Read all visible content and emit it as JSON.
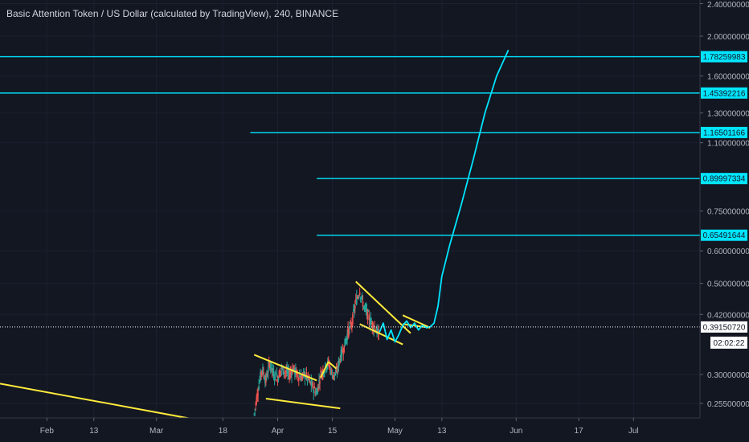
{
  "header": {
    "title": "Basic Attention Token / US Dollar (calculated by TradingView), 240, BINANCE"
  },
  "colors": {
    "background": "#131722",
    "level_line": "#00e5ff",
    "pattern": "#ffeb3b",
    "projection": "#00e5ff",
    "candle_up": "#26a69a",
    "candle_down": "#ef5350",
    "axis_text": "#b2b5be",
    "label_bg": "#ffffff"
  },
  "chart_data": {
    "type": "line",
    "title": "Basic Attention Token / US Dollar (calculated by TradingView), 240, BINANCE",
    "y_scale": "log",
    "ylim": [
      0.225,
      2.4
    ],
    "y_ticks": [
      {
        "value": 2.4,
        "label": "2.40000000"
      },
      {
        "value": 2.0,
        "label": "2.00000000"
      },
      {
        "value": 1.6,
        "label": "1.60000000"
      },
      {
        "value": 1.3,
        "label": "1.30000000"
      },
      {
        "value": 1.1,
        "label": "1.10000000"
      },
      {
        "value": 0.75,
        "label": "0.75000000"
      },
      {
        "value": 0.6,
        "label": "0.60000000"
      },
      {
        "value": 0.5,
        "label": "0.50000000"
      },
      {
        "value": 0.42,
        "label": "0.42000000"
      },
      {
        "value": 0.3,
        "label": "0.30000000"
      },
      {
        "value": 0.255,
        "label": "0.25500000"
      }
    ],
    "x_ticks": [
      {
        "date": "2019-02-01",
        "label": "Feb"
      },
      {
        "date": "2019-02-13",
        "label": "13"
      },
      {
        "date": "2019-03-01",
        "label": "Mar"
      },
      {
        "date": "2019-03-18",
        "label": "18"
      },
      {
        "date": "2019-04-01",
        "label": "Apr"
      },
      {
        "date": "2019-04-15",
        "label": "15"
      },
      {
        "date": "2019-05-01",
        "label": "May"
      },
      {
        "date": "2019-05-13",
        "label": "13"
      },
      {
        "date": "2019-06-01",
        "label": "Jun"
      },
      {
        "date": "2019-06-17",
        "label": "17"
      },
      {
        "date": "2019-07-01",
        "label": "Jul"
      }
    ],
    "horizontal_levels": [
      {
        "value": 1.78259983,
        "label": "1.78259983",
        "start_date": "2019-01-20"
      },
      {
        "value": 1.45392216,
        "label": "1.45392216",
        "start_date": "2019-01-20"
      },
      {
        "value": 1.16501166,
        "label": "1.16501166",
        "start_date": "2019-03-25"
      },
      {
        "value": 0.89997334,
        "label": "0.89997334",
        "start_date": "2019-04-11"
      },
      {
        "value": 0.65491644,
        "label": "0.65491644",
        "start_date": "2019-04-11"
      }
    ],
    "current_price": {
      "value": 0.3915072,
      "label": "0.39150720"
    },
    "countdown": "02:02:22",
    "series": [
      {
        "values": [
          [
            "2019-03-26",
            0.24
          ],
          [
            "2019-03-27",
            0.275
          ],
          [
            "2019-03-28",
            0.31
          ],
          [
            "2019-03-29",
            0.29
          ],
          [
            "2019-03-30",
            0.32
          ],
          [
            "2019-03-31",
            0.3
          ],
          [
            "2019-04-01",
            0.295
          ],
          [
            "2019-04-02",
            0.31
          ],
          [
            "2019-04-03",
            0.305
          ],
          [
            "2019-04-04",
            0.3
          ],
          [
            "2019-04-05",
            0.31
          ],
          [
            "2019-04-06",
            0.3
          ],
          [
            "2019-04-07",
            0.295
          ],
          [
            "2019-04-08",
            0.3
          ],
          [
            "2019-04-09",
            0.29
          ],
          [
            "2019-04-10",
            0.28
          ],
          [
            "2019-04-11",
            0.27
          ],
          [
            "2019-04-12",
            0.3
          ],
          [
            "2019-04-13",
            0.31
          ],
          [
            "2019-04-14",
            0.32
          ],
          [
            "2019-04-15",
            0.3
          ],
          [
            "2019-04-16",
            0.3
          ],
          [
            "2019-04-17",
            0.33
          ],
          [
            "2019-04-18",
            0.35
          ],
          [
            "2019-04-19",
            0.38
          ],
          [
            "2019-04-20",
            0.4
          ],
          [
            "2019-04-21",
            0.45
          ],
          [
            "2019-04-22",
            0.48
          ],
          [
            "2019-04-23",
            0.44
          ],
          [
            "2019-04-24",
            0.42
          ],
          [
            "2019-04-25",
            0.4
          ],
          [
            "2019-04-26",
            0.39
          ],
          [
            "2019-04-27",
            0.37
          ]
        ]
      },
      {
        "values": [
          [
            "2019-04-27",
            0.38
          ],
          [
            "2019-04-28",
            0.4
          ],
          [
            "2019-04-29",
            0.365
          ],
          [
            "2019-04-30",
            0.385
          ],
          [
            "2019-05-01",
            0.36
          ],
          [
            "2019-05-02",
            0.375
          ],
          [
            "2019-05-03",
            0.395
          ],
          [
            "2019-05-04",
            0.405
          ],
          [
            "2019-05-05",
            0.39
          ],
          [
            "2019-05-06",
            0.4
          ],
          [
            "2019-05-07",
            0.385
          ],
          [
            "2019-05-08",
            0.395
          ],
          [
            "2019-05-09",
            0.39
          ],
          [
            "2019-05-10",
            0.392
          ],
          [
            "2019-05-11",
            0.4
          ],
          [
            "2019-05-12",
            0.44
          ],
          [
            "2019-05-13",
            0.52
          ],
          [
            "2019-05-15",
            0.62
          ],
          [
            "2019-05-18",
            0.78
          ],
          [
            "2019-05-21",
            1.0
          ],
          [
            "2019-05-24",
            1.3
          ],
          [
            "2019-05-27",
            1.6
          ],
          [
            "2019-05-30",
            1.85
          ]
        ]
      }
    ],
    "trend_lines": [
      {
        "from": [
          "2019-01-20",
          0.285
        ],
        "to": [
          "2019-03-18",
          0.2265
        ]
      },
      {
        "from": [
          "2019-03-26",
          0.335
        ],
        "to": [
          "2019-04-11",
          0.29
        ]
      },
      {
        "from": [
          "2019-03-29",
          0.262
        ],
        "to": [
          "2019-04-17",
          0.248
        ]
      },
      {
        "from": [
          "2019-04-12",
          0.295
        ],
        "to": [
          "2019-04-14",
          0.322
        ]
      },
      {
        "from": [
          "2019-04-14",
          0.322
        ],
        "to": [
          "2019-04-16",
          0.31
        ]
      },
      {
        "from": [
          "2019-04-21",
          0.505
        ],
        "to": [
          "2019-05-05",
          0.378
        ]
      },
      {
        "from": [
          "2019-04-22",
          0.398
        ],
        "to": [
          "2019-05-03",
          0.355
        ]
      },
      {
        "from": [
          "2019-05-03",
          0.418
        ],
        "to": [
          "2019-05-10",
          0.39
        ]
      },
      {
        "from": [
          "2019-05-03",
          0.398
        ],
        "to": [
          "2019-05-10",
          0.39
        ]
      }
    ]
  }
}
